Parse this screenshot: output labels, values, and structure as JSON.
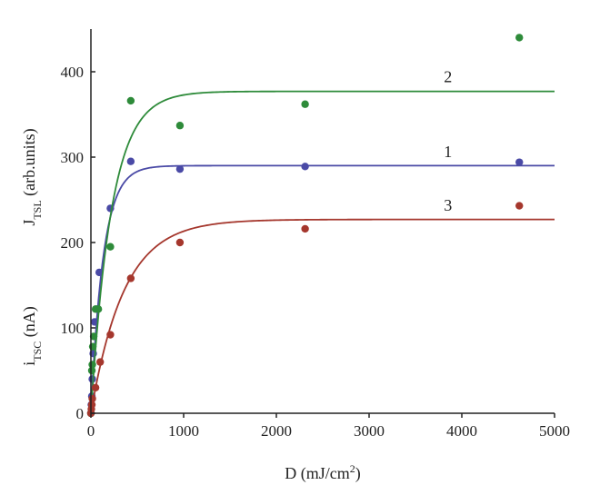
{
  "chart_data": {
    "type": "scatter",
    "xlabel": {
      "main": "D (mJ/cm",
      "sup": "2",
      "tail": ")"
    },
    "ylabel": {
      "primary": {
        "main": "i",
        "sub": "TSC",
        "tail": " (nA)"
      },
      "secondary": {
        "main": "J",
        "sub": "TSL",
        "tail": " (arb.units)"
      }
    },
    "xlim": [
      0,
      5000
    ],
    "ylim": [
      0,
      450
    ],
    "xticks": [
      "0",
      "1000",
      "2000",
      "3000",
      "4000",
      "5000"
    ],
    "yticks": [
      "0",
      "100",
      "200",
      "300",
      "400"
    ],
    "grid": false,
    "legend": "none",
    "series": [
      {
        "name": "1",
        "color": "#4a4aa6",
        "points": [
          [
            0,
            0
          ],
          [
            5,
            10
          ],
          [
            10,
            20
          ],
          [
            15,
            40
          ],
          [
            25,
            70
          ],
          [
            40,
            107
          ],
          [
            60,
            122
          ],
          [
            90,
            165
          ],
          [
            210,
            240
          ],
          [
            430,
            295
          ],
          [
            960,
            286
          ],
          [
            2310,
            289
          ],
          [
            4620,
            294
          ]
        ],
        "fit": {
          "ymax": 290,
          "k": 0.0075
        }
      },
      {
        "name": "2",
        "color": "#2e8b3a",
        "points": [
          [
            0,
            0
          ],
          [
            10,
            50
          ],
          [
            15,
            57
          ],
          [
            20,
            78
          ],
          [
            30,
            90
          ],
          [
            50,
            122
          ],
          [
            80,
            122
          ],
          [
            210,
            195
          ],
          [
            430,
            366
          ],
          [
            960,
            337
          ],
          [
            2310,
            362
          ],
          [
            4620,
            440
          ]
        ],
        "fit": {
          "ymax": 377,
          "k": 0.0045
        }
      },
      {
        "name": "3",
        "color": "#a5372d",
        "points": [
          [
            0,
            0
          ],
          [
            5,
            5
          ],
          [
            10,
            10
          ],
          [
            15,
            17
          ],
          [
            50,
            30
          ],
          [
            100,
            60
          ],
          [
            210,
            92
          ],
          [
            430,
            158
          ],
          [
            960,
            200
          ],
          [
            2310,
            216
          ],
          [
            4620,
            243
          ]
        ],
        "fit": {
          "ymax": 227,
          "k": 0.0028
        }
      }
    ],
    "curve_labels": [
      {
        "text": "2",
        "x": 3850,
        "y": 388
      },
      {
        "text": "1",
        "x": 3850,
        "y": 300
      },
      {
        "text": "3",
        "x": 3850,
        "y": 237
      }
    ]
  }
}
